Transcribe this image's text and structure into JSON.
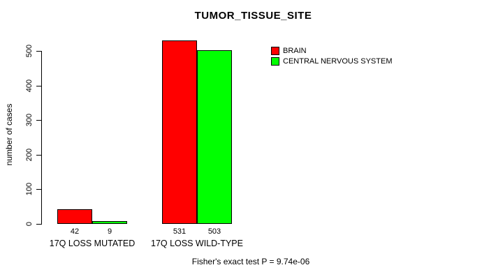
{
  "chart_data": {
    "type": "bar",
    "title": "TUMOR_TISSUE_SITE",
    "xlabel": "",
    "ylabel": "number of cases",
    "ylim": [
      0,
      500
    ],
    "yticks": [
      0,
      100,
      200,
      300,
      400,
      500
    ],
    "categories": [
      "17Q LOSS MUTATED",
      "17Q LOSS WILD-TYPE"
    ],
    "series": [
      {
        "name": "BRAIN",
        "color": "#FF0000",
        "values": [
          42,
          531
        ]
      },
      {
        "name": "CENTRAL NERVOUS SYSTEM",
        "color": "#00FF00",
        "values": [
          9,
          503
        ]
      }
    ],
    "bar_value_labels": [
      [
        42,
        9
      ],
      [
        531,
        503
      ]
    ],
    "legend_position": "top-right",
    "grid": false,
    "annotation": "Fisher's exact test P = 9.74e-06",
    "axis_color": "#000000",
    "background_color": "#FFFFFF"
  }
}
